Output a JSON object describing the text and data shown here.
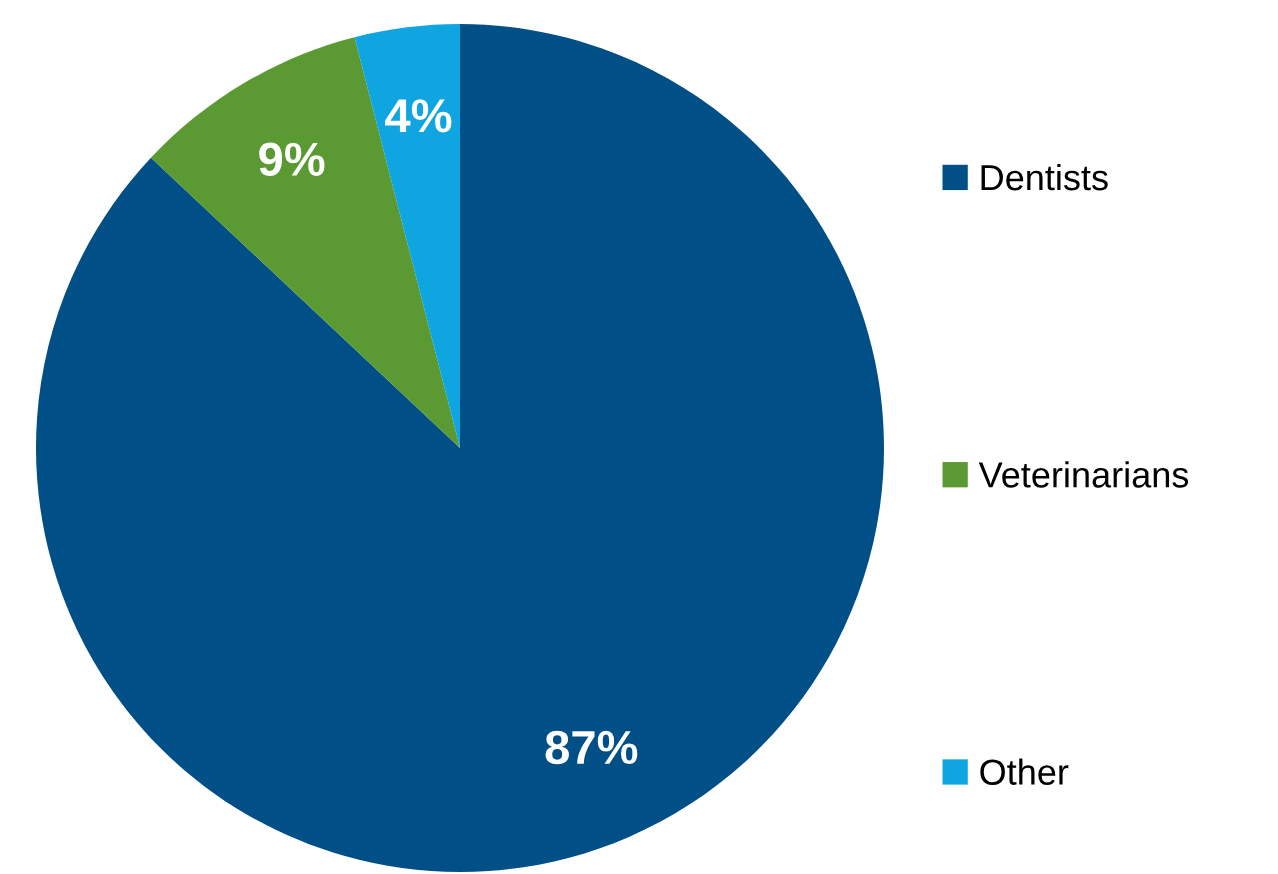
{
  "chart_data": {
    "type": "pie",
    "categories": [
      "Dentists",
      "Veterinarians",
      "Other"
    ],
    "values": [
      87,
      9,
      4
    ],
    "colors": [
      "#004f86",
      "#5b9a32",
      "#0ea5e0"
    ],
    "value_labels": [
      "87%",
      "9%",
      "4%"
    ],
    "legend": "right"
  }
}
